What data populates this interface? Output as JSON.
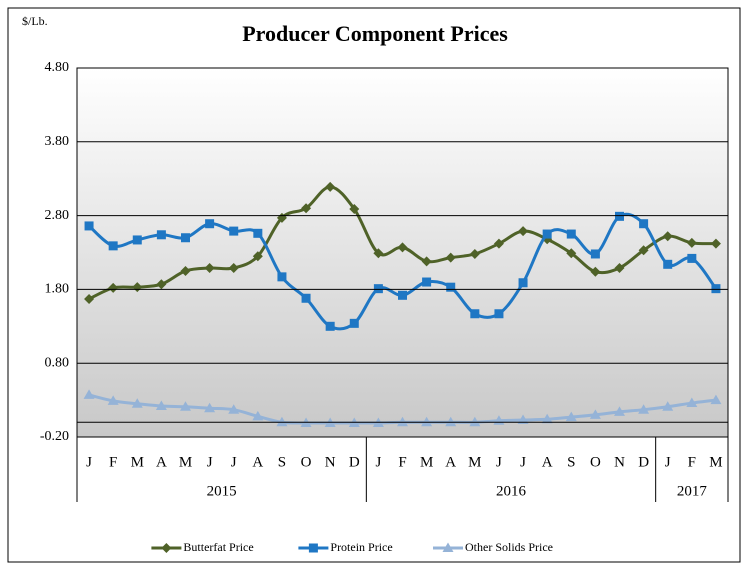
{
  "chart_data": {
    "type": "line",
    "title": "Producer Component Prices",
    "y_label": "$/Lb.",
    "category_groups": [
      {
        "name": "2015",
        "categories": [
          "J",
          "F",
          "M",
          "A",
          "M",
          "J",
          "J",
          "A",
          "S",
          "O",
          "N",
          "D"
        ]
      },
      {
        "name": "2016",
        "categories": [
          "J",
          "F",
          "M",
          "A",
          "M",
          "J",
          "J",
          "A",
          "S",
          "O",
          "N",
          "D"
        ]
      },
      {
        "name": "2017",
        "categories": [
          "J",
          "F",
          "M"
        ]
      }
    ],
    "ylim": [
      -0.2,
      4.8
    ],
    "yticks": [
      {
        "value": -0.2,
        "label": "-0.20"
      },
      {
        "value": 0.8,
        "label": "0.80"
      },
      {
        "value": 1.8,
        "label": "1.80"
      },
      {
        "value": 2.8,
        "label": "2.80"
      },
      {
        "value": 3.8,
        "label": "3.80"
      },
      {
        "value": 4.8,
        "label": "4.80"
      }
    ],
    "grid": true,
    "legend": "bottom",
    "series": [
      {
        "name": "Butterfat Price",
        "color": "#4f6228",
        "marker": "diamond",
        "values": [
          1.67,
          1.82,
          1.83,
          1.87,
          2.05,
          2.09,
          2.09,
          2.25,
          2.77,
          2.9,
          3.19,
          2.89,
          2.29,
          2.37,
          2.18,
          2.23,
          2.28,
          2.42,
          2.59,
          2.48,
          2.29,
          2.04,
          2.09,
          2.33,
          2.52,
          2.43,
          2.42
        ]
      },
      {
        "name": "Protein Price",
        "color": "#1f77c4",
        "marker": "square",
        "values": [
          2.66,
          2.39,
          2.47,
          2.54,
          2.5,
          2.69,
          2.59,
          2.56,
          1.97,
          1.68,
          1.3,
          1.34,
          1.81,
          1.72,
          1.9,
          1.83,
          1.47,
          1.47,
          1.89,
          2.55,
          2.55,
          2.28,
          2.79,
          2.69,
          2.14,
          2.22,
          1.81
        ]
      },
      {
        "name": "Other Solids Price",
        "color": "#95b3d7",
        "marker": "triangle",
        "values": [
          0.37,
          0.29,
          0.25,
          0.22,
          0.21,
          0.19,
          0.17,
          0.08,
          0.0,
          -0.01,
          -0.01,
          -0.01,
          -0.01,
          0.0,
          0.0,
          0.0,
          0.0,
          0.02,
          0.03,
          0.04,
          0.07,
          0.1,
          0.14,
          0.17,
          0.21,
          0.26,
          0.3
        ]
      }
    ]
  }
}
